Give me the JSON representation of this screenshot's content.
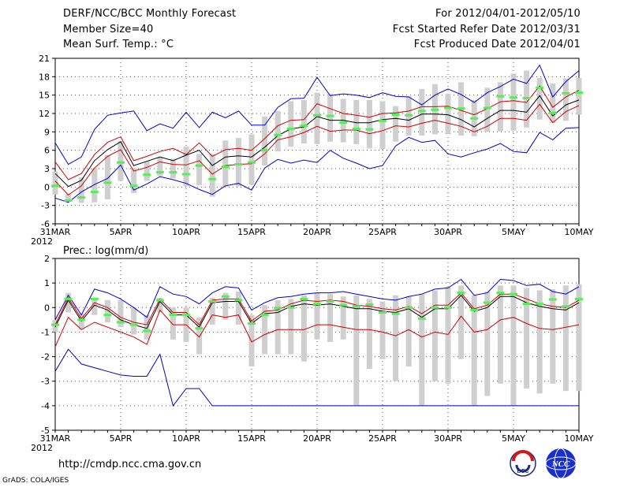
{
  "header": {
    "title": "DERF/NCC/BCC Monthly Forecast",
    "member_size": "Member Size=40",
    "variable": "Mean Surf. Temp.: °C",
    "period": "For 2012/04/01-2012/05/10",
    "started": "Fcst Started Refer Date 2012/03/31",
    "produced": "Fcst Produced Date 2012/04/01"
  },
  "footer": {
    "url": "http://cmdp.ncc.cma.gov.cn",
    "grads": "GrADS: COLA/IGES",
    "logo_bcc": "BCC",
    "logo_ncc": "NCC"
  },
  "colors": {
    "mean": "#000000",
    "spread": "#d00000",
    "extreme": "#0000d0",
    "box": "#cfcfcf",
    "observed": "#55ee55"
  },
  "chart_data": [
    {
      "type": "line",
      "title": "Mean Surf. Temp.: °C",
      "xlabel": "",
      "ylabel": "",
      "ylim": [
        -6,
        21
      ],
      "yticks": [
        -6,
        -3,
        0,
        3,
        6,
        9,
        12,
        15,
        18,
        21
      ],
      "grid": true,
      "x_tick_labels": [
        "31MAR",
        "5APR",
        "10APR",
        "15APR",
        "20APR",
        "25APR",
        "30APR",
        "5MAY",
        "10MAY"
      ],
      "x_tick_index": [
        0,
        5,
        10,
        15,
        20,
        25,
        30,
        35,
        40
      ],
      "year_label": "2012",
      "series": [
        {
          "name": "ensemble max",
          "values": [
            7.2,
            3.7,
            4.9,
            9.4,
            11.7,
            12.1,
            12.4,
            9.2,
            10.3,
            9.6,
            12.2,
            9.7,
            12.2,
            11.3,
            12.4,
            10.1,
            10.1,
            13.0,
            14.4,
            14.5,
            17.9,
            14.9,
            15.2,
            15.0,
            14.6,
            15.4,
            14.8,
            14.7,
            13.4,
            15.0,
            16.0,
            15.1,
            13.8,
            15.4,
            16.4,
            17.6,
            16.9,
            19.9,
            14.7,
            17.2,
            19.0
          ]
        },
        {
          "name": "mean + sd",
          "values": [
            4.1,
            1.2,
            2.2,
            5.3,
            7.3,
            8.2,
            4.3,
            5.0,
            5.8,
            6.3,
            5.3,
            7.2,
            5.0,
            6.1,
            6.3,
            6.0,
            7.9,
            10.0,
            10.9,
            11.0,
            13.6,
            12.8,
            12.0,
            11.7,
            11.4,
            12.0,
            12.1,
            12.4,
            13.1,
            13.1,
            13.2,
            12.5,
            11.8,
            12.8,
            13.9,
            14.1,
            13.8,
            16.5,
            13.0,
            14.7,
            15.8
          ]
        },
        {
          "name": "ensemble mean",
          "values": [
            2.2,
            0.1,
            1.1,
            4.3,
            6.1,
            7.4,
            3.5,
            4.2,
            4.9,
            4.3,
            5.2,
            6.0,
            3.5,
            4.9,
            5.1,
            4.9,
            6.5,
            8.4,
            9.5,
            9.8,
            11.5,
            10.9,
            10.9,
            10.5,
            10.5,
            11.0,
            11.2,
            10.9,
            11.9,
            11.9,
            11.8,
            11.0,
            9.8,
            11.2,
            12.5,
            12.5,
            12.2,
            14.9,
            11.6,
            13.4,
            14.2
          ]
        },
        {
          "name": "mean - sd",
          "values": [
            1.0,
            -1.3,
            0.2,
            3.1,
            5.0,
            6.1,
            2.6,
            3.2,
            4.1,
            3.7,
            3.6,
            4.3,
            2.1,
            3.5,
            3.7,
            3.8,
            5.4,
            7.7,
            8.2,
            8.9,
            9.9,
            9.1,
            9.3,
            9.3,
            8.7,
            9.2,
            10.0,
            9.8,
            10.4,
            10.9,
            10.4,
            9.9,
            9.0,
            9.9,
            11.2,
            11.2,
            10.9,
            13.5,
            10.5,
            12.3,
            13.3
          ]
        },
        {
          "name": "ensemble min",
          "values": [
            -1.8,
            -2.5,
            -0.8,
            0.4,
            1.4,
            3.6,
            -0.5,
            0.5,
            1.7,
            1.2,
            0.6,
            -0.4,
            -1.2,
            0.2,
            0.6,
            -0.5,
            3.1,
            4.5,
            3.9,
            4.4,
            4.0,
            6.0,
            4.7,
            3.9,
            3.0,
            3.5,
            6.7,
            8.1,
            7.3,
            7.6,
            5.4,
            4.9,
            5.6,
            6.2,
            7.1,
            5.8,
            5.6,
            8.9,
            7.7,
            9.6,
            9.7
          ]
        }
      ],
      "boxes": {
        "low": [
          -1.2,
          -2.3,
          -2.6,
          -2.5,
          -2.0,
          1.0,
          -1.0,
          1.0,
          1.8,
          1.4,
          0.1,
          0.3,
          -1.6,
          0.0,
          0.1,
          0.4,
          3.5,
          5.8,
          6.6,
          7.1,
          7.0,
          7.4,
          7.3,
          7.0,
          6.3,
          6.2,
          7.4,
          8.4,
          8.4,
          8.6,
          8.6,
          8.4,
          8.3,
          9.0,
          9.1,
          9.2,
          9.7,
          11.0,
          10.5,
          10.8,
          11.8
        ],
        "high": [
          2.5,
          -1.1,
          1.6,
          3.1,
          5.2,
          7.5,
          3.1,
          4.2,
          4.8,
          4.6,
          6.6,
          5.4,
          5.4,
          7.6,
          8.0,
          8.6,
          11.5,
          12.4,
          14.0,
          14.2,
          15.4,
          15.2,
          14.4,
          14.2,
          14.2,
          14.0,
          13.2,
          14.8,
          16.0,
          16.8,
          15.2,
          17.1,
          14.2,
          16.2,
          17.1,
          18.5,
          19.0,
          17.8,
          16.9,
          17.7,
          17.8
        ]
      },
      "observed": [
        0.2,
        -2.2,
        -1.7,
        -0.8,
        0.7,
        4.0,
        0.2,
        2.0,
        2.4,
        2.4,
        2.1,
        3.5,
        1.3,
        3.3,
        3.7,
        4.0,
        6.0,
        8.5,
        9.5,
        10.0,
        11.7,
        11.6,
        10.5,
        9.5,
        9.4,
        10.8,
        11.8,
        11.7,
        12.4,
        12.6,
        12.9,
        12.8,
        11.2,
        12.9,
        14.8,
        14.6,
        14.5,
        16.2,
        12.1,
        15.3,
        15.4
      ]
    },
    {
      "type": "line",
      "title": "Prec.: log(mm/d)",
      "xlabel": "",
      "ylabel": "",
      "ylim": [
        -5,
        2
      ],
      "yticks": [
        -5,
        -4,
        -3,
        -2,
        -1,
        0,
        1,
        2
      ],
      "grid": true,
      "x_tick_labels": [
        "31MAR",
        "5APR",
        "10APR",
        "15APR",
        "20APR",
        "25APR",
        "30APR",
        "5MAY",
        "10MAY"
      ],
      "x_tick_index": [
        0,
        5,
        10,
        15,
        20,
        25,
        30,
        35,
        40
      ],
      "year_label": "2012",
      "series": [
        {
          "name": "ensemble max",
          "values": [
            -0.5,
            0.5,
            -0.3,
            0.75,
            0.6,
            0.35,
            0.0,
            -0.4,
            0.85,
            0.55,
            0.45,
            0.15,
            0.6,
            0.85,
            0.8,
            -0.1,
            0.2,
            0.4,
            0.45,
            0.55,
            0.6,
            0.6,
            0.65,
            0.55,
            0.45,
            0.35,
            0.3,
            0.45,
            0.55,
            0.75,
            0.8,
            1.15,
            0.5,
            0.6,
            1.15,
            1.1,
            0.9,
            0.95,
            0.65,
            0.55,
            0.85
          ]
        },
        {
          "name": "mean + sd",
          "values": [
            -0.7,
            0.4,
            -0.45,
            0.2,
            0.0,
            -0.4,
            -0.6,
            -0.7,
            0.35,
            -0.2,
            -0.2,
            -0.7,
            0.3,
            0.35,
            0.35,
            -0.55,
            -0.15,
            -0.1,
            0.15,
            0.3,
            0.25,
            0.3,
            0.25,
            0.1,
            0.05,
            -0.05,
            -0.1,
            0.05,
            -0.25,
            0.1,
            0.1,
            0.6,
            -0.05,
            0.1,
            0.55,
            0.55,
            0.35,
            0.15,
            0.05,
            0.0,
            0.3
          ]
        },
        {
          "name": "ensemble mean",
          "values": [
            -0.8,
            0.3,
            -0.55,
            0.1,
            -0.1,
            -0.5,
            -0.7,
            -0.85,
            0.25,
            -0.3,
            -0.3,
            -0.8,
            0.2,
            0.25,
            0.25,
            -0.65,
            -0.25,
            -0.2,
            0.05,
            0.15,
            0.1,
            0.15,
            0.05,
            -0.05,
            -0.05,
            -0.15,
            -0.2,
            -0.05,
            -0.4,
            -0.05,
            -0.05,
            0.5,
            -0.15,
            0.0,
            0.45,
            0.45,
            0.2,
            0.05,
            -0.05,
            -0.1,
            0.2
          ]
        },
        {
          "name": "mean - sd",
          "values": [
            -1.6,
            -0.4,
            -0.9,
            -0.6,
            -0.8,
            -1.0,
            -1.2,
            -1.5,
            -0.1,
            -0.7,
            -0.7,
            -1.2,
            -0.3,
            -0.4,
            -0.3,
            -1.4,
            -1.1,
            -0.9,
            -0.9,
            -0.9,
            -0.7,
            -0.7,
            -0.8,
            -0.9,
            -0.9,
            -1.0,
            -1.15,
            -0.9,
            -1.2,
            -1.0,
            -1.1,
            -0.35,
            -1.0,
            -0.9,
            -0.5,
            -0.4,
            -0.65,
            -0.85,
            -0.9,
            -0.8,
            -0.7
          ]
        },
        {
          "name": "ensemble min",
          "values": [
            -2.6,
            -1.7,
            -2.3,
            -2.45,
            -2.6,
            -2.75,
            -2.8,
            -2.8,
            -1.9,
            -4.0,
            -3.3,
            -3.3,
            -4.0,
            -4.0,
            -4.0,
            -4.0,
            -4.0,
            -4.0,
            -4.0,
            -4.0,
            -4.0,
            -4.0,
            -4.0,
            -4.0,
            -4.0,
            -4.0,
            -4.0,
            -4.0,
            -4.0,
            -4.0,
            -4.0,
            -4.0,
            -4.0,
            -4.0,
            -4.0,
            -4.0,
            -4.0,
            -4.0,
            -4.0,
            -4.0,
            -4.0
          ]
        }
      ],
      "boxes": {
        "low": [
          -1.0,
          -0.2,
          -0.9,
          -0.3,
          -0.6,
          -0.8,
          -1.1,
          -1.3,
          -0.2,
          -1.3,
          -1.4,
          -1.9,
          -0.7,
          -0.5,
          -0.7,
          -2.4,
          -1.9,
          -1.9,
          -1.9,
          -2.2,
          -1.3,
          -1.4,
          -1.3,
          -4.0,
          -2.5,
          -2.1,
          -3.0,
          -2.4,
          -4.0,
          -3.0,
          -3.1,
          -2.1,
          -4.0,
          -3.6,
          -3.1,
          -4.0,
          -3.3,
          -3.5,
          -3.1,
          -3.4,
          -3.4
        ]
      },
      "boxes_high": [
        -0.5,
        0.6,
        -0.25,
        0.4,
        0.3,
        0.3,
        0.0,
        -0.3,
        0.4,
        0.0,
        0.0,
        -0.4,
        0.4,
        0.6,
        0.65,
        -0.3,
        0.1,
        0.3,
        0.35,
        0.5,
        0.6,
        0.55,
        0.45,
        0.5,
        0.35,
        0.25,
        0.5,
        0.45,
        0.55,
        0.7,
        0.85,
        0.9,
        0.5,
        0.65,
        0.9,
        0.9,
        0.8,
        0.7,
        0.75,
        0.9,
        0.95
      ],
      "observed": [
        -0.7,
        0.35,
        -0.5,
        0.35,
        -0.3,
        -0.6,
        -0.7,
        -0.95,
        0.3,
        -0.3,
        -0.3,
        -0.85,
        0.25,
        0.45,
        0.3,
        -0.65,
        -0.3,
        -0.02,
        0.0,
        0.35,
        0.15,
        0.25,
        0.1,
        0.05,
        0.12,
        -0.2,
        -0.25,
        0.0,
        -0.45,
        0.0,
        0.0,
        0.6,
        -0.1,
        0.2,
        0.6,
        0.55,
        0.15,
        0.15,
        0.33,
        0.05,
        0.35
      ]
    }
  ]
}
